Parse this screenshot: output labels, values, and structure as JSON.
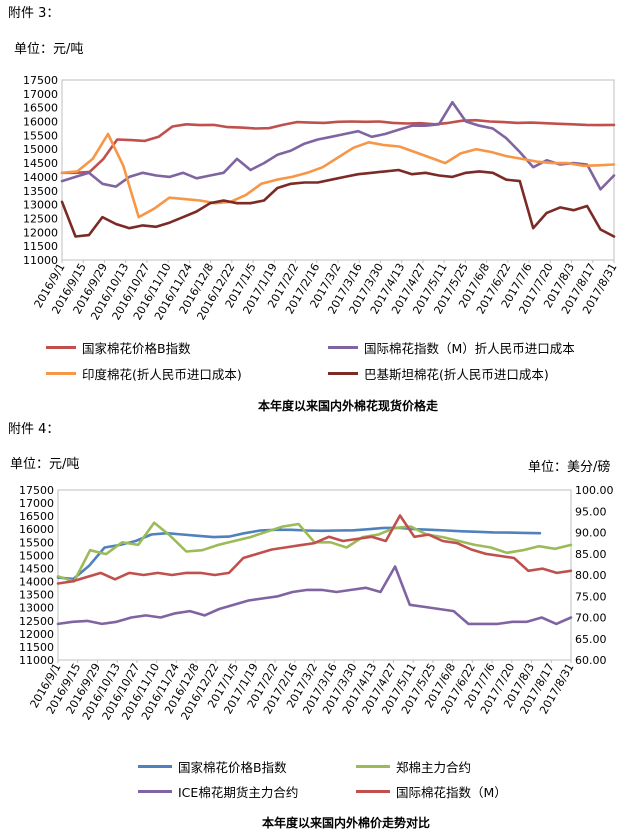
{
  "section3": {
    "header": "附件 3：",
    "unit": "单位：元/吨",
    "caption": "本年度以来国内外棉花现货价格走",
    "chart_data": {
      "type": "line",
      "ylim": [
        11000,
        17500
      ],
      "yticks": [
        11000,
        11500,
        12000,
        12500,
        13000,
        13500,
        14000,
        14500,
        15000,
        15500,
        16000,
        16500,
        17000,
        17500
      ],
      "xticks": [
        "2016/9/1",
        "2016/9/15",
        "2016/9/29",
        "2016/10/13",
        "2016/10/27",
        "2016/11/10",
        "2016/11/24",
        "2016/12/8",
        "2016/12/22",
        "2017/1/5",
        "2017/1/19",
        "2017/2/2",
        "2017/2/16",
        "2017/3/2",
        "2017/3/16",
        "2017/3/30",
        "2017/4/13",
        "2017/4/27",
        "2017/5/11",
        "2017/5/25",
        "2017/6/8",
        "2017/6/22",
        "2017/7/6",
        "2017/7/20",
        "2017/8/3",
        "2017/8/17",
        "2017/8/31"
      ],
      "series": [
        {
          "name": "国家棉花价格B指数",
          "color": "#c0504d",
          "values": [
            14150,
            14150,
            14180,
            14650,
            15350,
            15330,
            15300,
            15450,
            15820,
            15900,
            15870,
            15880,
            15800,
            15780,
            15750,
            15760,
            15880,
            15980,
            15960,
            15950,
            15990,
            16000,
            15990,
            16000,
            15950,
            15930,
            15940,
            15900,
            15950,
            16030,
            16050,
            16000,
            15980,
            15950,
            15960,
            15940,
            15920,
            15900,
            15880,
            15870,
            15880
          ]
        },
        {
          "name": "国际棉花指数（M）折人民币进口成本",
          "color": "#8064a2",
          "values": [
            13850,
            14000,
            14150,
            13750,
            13650,
            14000,
            14150,
            14050,
            14000,
            14150,
            13950,
            14050,
            14150,
            14650,
            14250,
            14500,
            14800,
            14950,
            15200,
            15350,
            15450,
            15550,
            15650,
            15450,
            15550,
            15700,
            15850,
            15850,
            15900,
            16700,
            16000,
            15850,
            15750,
            15400,
            14900,
            14350,
            14600,
            14450,
            14500,
            14450,
            13550,
            14050
          ]
        },
        {
          "name": "印度棉花(折人民币进口成本)",
          "color": "#f79646",
          "values": [
            14150,
            14200,
            14650,
            15550,
            14400,
            12550,
            12850,
            13250,
            13200,
            13150,
            13050,
            13100,
            13350,
            13750,
            13900,
            14000,
            14150,
            14350,
            14700,
            15050,
            15250,
            15150,
            15100,
            14900,
            14700,
            14500,
            14850,
            15000,
            14900,
            14750,
            14650,
            14550,
            14500,
            14500,
            14400,
            14420,
            14450
          ]
        },
        {
          "name": "巴基斯坦棉花(折人民币进口成本)",
          "color": "#7b2a25",
          "values": [
            13100,
            11850,
            11900,
            12550,
            12300,
            12150,
            12250,
            12200,
            12350,
            12550,
            12750,
            13050,
            13150,
            13050,
            13050,
            13150,
            13600,
            13750,
            13800,
            13800,
            13900,
            14000,
            14100,
            14150,
            14200,
            14250,
            14100,
            14150,
            14050,
            14000,
            14150,
            14200,
            14150,
            13900,
            13850,
            12150,
            12700,
            12900,
            12800,
            12950,
            12100,
            11850
          ]
        }
      ]
    },
    "legend": [
      "国家棉花价格B指数",
      "国际棉花指数（M）折人民币进口成本",
      "印度棉花(折人民币进口成本)",
      "巴基斯坦棉花(折人民币进口成本)"
    ]
  },
  "section4": {
    "header": "附件 4：",
    "unit_left": "单位：元/吨",
    "unit_right": "单位：美分/磅",
    "caption": "本年度以来国内外棉价走势对比",
    "chart_data": {
      "type": "line",
      "ylim": [
        11000,
        17500
      ],
      "ylim_right": [
        60,
        100
      ],
      "yticks": [
        11000,
        11500,
        12000,
        12500,
        13000,
        13500,
        14000,
        14500,
        15000,
        15500,
        16000,
        16500,
        17000,
        17500
      ],
      "yticks_right": [
        "60.00",
        "65.00",
        "70.00",
        "75.00",
        "80.00",
        "85.00",
        "90.00",
        "95.00",
        "100.00"
      ],
      "xticks": [
        "2016/9/1",
        "2016/9/15",
        "2016/9/29",
        "2016/10/13",
        "2016/10/27",
        "2016/11/10",
        "2016/11/24",
        "2016/12/8",
        "2016/12/22",
        "2017/1/5",
        "2017/1/19",
        "2017/2/2",
        "2017/2/16",
        "2017/3/2",
        "2017/3/16",
        "2017/3/30",
        "2017/4/13",
        "2017/4/27",
        "2017/5/11",
        "2017/5/25",
        "2017/6/8",
        "2017/6/22",
        "2017/7/6",
        "2017/7/20",
        "2017/8/3",
        "2017/8/17",
        "2017/8/31"
      ],
      "series": [
        {
          "name": "国家棉花价格B指数",
          "color": "#4f81bd",
          "axis": "left",
          "values": [
            14150,
            14100,
            14600,
            15300,
            15400,
            15550,
            15800,
            15850,
            15800,
            15750,
            15700,
            15720,
            15850,
            15950,
            15980,
            15980,
            15950,
            15940,
            15950,
            15960,
            16000,
            16050,
            16050,
            16000,
            15980,
            15950,
            15920,
            15900,
            15880,
            15870,
            15860,
            15850,
            null,
            null
          ]
        },
        {
          "name": "郑棉主力合约",
          "color": "#9bbb59",
          "axis": "left",
          "values": [
            14200,
            14000,
            15200,
            15050,
            15500,
            15400,
            16250,
            15750,
            15150,
            15200,
            15400,
            15550,
            15700,
            15900,
            16100,
            16200,
            15500,
            15500,
            15300,
            15700,
            15800,
            16050,
            16100,
            15800,
            15700,
            15550,
            15400,
            15300,
            15100,
            15200,
            15350,
            15250,
            15400
          ]
        },
        {
          "name": "ICE棉花期货主力合约",
          "color": "#8064a2",
          "axis": "right",
          "values": [
            68.5,
            69,
            69.2,
            68.5,
            69,
            70,
            70.5,
            70,
            71,
            71.5,
            70.5,
            72,
            73,
            74,
            74.5,
            75,
            76,
            76.5,
            76.5,
            76,
            76.5,
            77,
            76,
            82,
            73,
            72.5,
            72,
            71.5,
            68.5,
            68.5,
            68.5,
            69,
            69,
            70,
            68.5,
            70
          ]
        },
        {
          "name": "国际棉花指数（M）",
          "color": "#c0504d",
          "axis": "right",
          "values": [
            78,
            78.5,
            79.5,
            80.5,
            79,
            80.5,
            80,
            80.5,
            80,
            80.5,
            80.5,
            80,
            80.5,
            84,
            85,
            86,
            86.5,
            87,
            87.5,
            89,
            88,
            88.5,
            89,
            88,
            94,
            89,
            89.5,
            88,
            87.5,
            86,
            85,
            84.5,
            84,
            81,
            81.5,
            80.5,
            81
          ]
        }
      ]
    },
    "legend": [
      "国家棉花价格B指数",
      "郑棉主力合约",
      "ICE棉花期货主力合约",
      "国际棉花指数（M）"
    ]
  }
}
